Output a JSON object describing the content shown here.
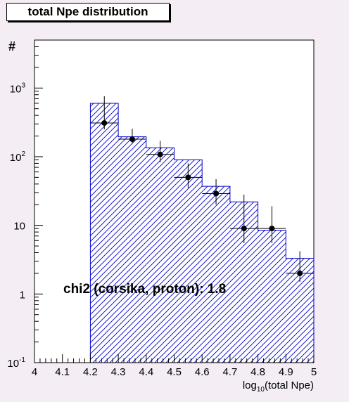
{
  "chart_data": {
    "type": "bar",
    "title": "total Npe distribution",
    "xlabel_base": "log",
    "xlabel_sub": "10",
    "xlabel_rest": "(total Npe)",
    "ylabel": "#",
    "xlim": [
      4.0,
      5.0
    ],
    "ylim": [
      0.1,
      5000
    ],
    "yscale": "log",
    "x_ticks": [
      "4",
      "4.1",
      "4.2",
      "4.3",
      "4.4",
      "4.5",
      "4.6",
      "4.7",
      "4.8",
      "4.9",
      "5"
    ],
    "y_ticks": [
      {
        "value": 0.1,
        "base": "10",
        "exp": "-1"
      },
      {
        "value": 1,
        "base": "1",
        "exp": ""
      },
      {
        "value": 10,
        "base": "10",
        "exp": ""
      },
      {
        "value": 100,
        "base": "10",
        "exp": "2"
      },
      {
        "value": 1000,
        "base": "10",
        "exp": "3"
      }
    ],
    "histogram": {
      "bin_edges": [
        4.2,
        4.3,
        4.4,
        4.5,
        4.6,
        4.7,
        4.8,
        4.9,
        5.0
      ],
      "values": [
        600,
        195,
        135,
        90,
        37,
        22,
        8.5,
        3.3
      ],
      "color": "#0000cc"
    },
    "data_points": {
      "x": [
        4.25,
        4.35,
        4.45,
        4.55,
        4.65,
        4.75,
        4.85,
        4.95
      ],
      "y": [
        310,
        180,
        108,
        50,
        29,
        9,
        9,
        2
      ],
      "y_err_low": [
        250,
        155,
        83,
        35,
        20,
        5.5,
        5.5,
        1.5
      ],
      "y_err_high": [
        760,
        255,
        170,
        80,
        47,
        28,
        19,
        4.2
      ],
      "color": "#000000"
    },
    "annotation": "chi2 (corsika, proton): 1.8",
    "grid": false
  }
}
